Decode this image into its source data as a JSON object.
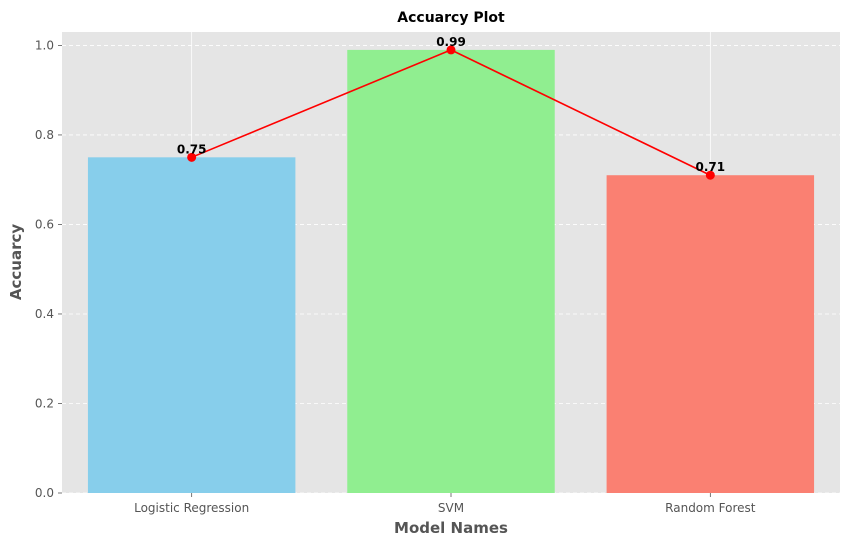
{
  "chart_data": {
    "type": "bar",
    "title": "Accuarcy Plot",
    "xlabel": "Model Names",
    "ylabel": "Accuarcy",
    "categories": [
      "Logistic Regression",
      "SVM",
      "Random Forest"
    ],
    "values": [
      0.75,
      0.99,
      0.71
    ],
    "data_labels": [
      "0.75",
      "0.99",
      "0.71"
    ],
    "bar_colors": [
      "#87ceeb",
      "#90ee90",
      "#fa8072"
    ],
    "line_overlay": {
      "values": [
        0.75,
        0.99,
        0.71
      ],
      "color": "#ff0000",
      "marker": "circle"
    },
    "ylim": [
      0,
      1.03
    ],
    "yticks": [
      0.0,
      0.2,
      0.4,
      0.6,
      0.8,
      1.0
    ],
    "ytick_labels": [
      "0.0",
      "0.2",
      "0.4",
      "0.6",
      "0.8",
      "1.0"
    ],
    "grid": true,
    "background_color": "#e5e5e5"
  }
}
